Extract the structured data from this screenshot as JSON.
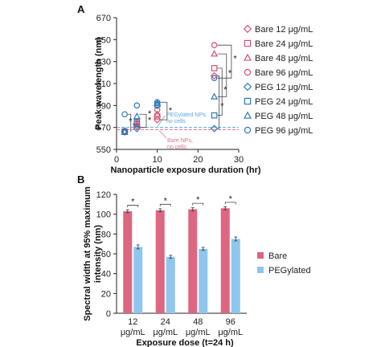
{
  "chart_data": [
    {
      "panel": "A",
      "type": "scatter",
      "xlabel": "Nanoparticle exposure duration (hr)",
      "ylabel": "Peak wavelength (nm)",
      "xlim": [
        0,
        30
      ],
      "ylim": [
        550,
        670
      ],
      "xticks": [
        "0",
        "10",
        "20",
        "30"
      ],
      "yticks": [
        "550",
        "570",
        "590",
        "610",
        "630",
        "650",
        "670"
      ],
      "grid": false,
      "legend_position": "right",
      "series": [
        {
          "name": "Bare 12 μg/mL",
          "marker": "diamond",
          "color": "#d94f6c",
          "points": [
            [
              2,
              566
            ],
            [
              5,
              571
            ],
            [
              10,
              577
            ],
            [
              24,
              617
            ]
          ]
        },
        {
          "name": "Bare 24 μg/mL",
          "marker": "square",
          "color": "#d94f6c",
          "points": [
            [
              2,
              566
            ],
            [
              5,
              573
            ],
            [
              10,
              580
            ],
            [
              24,
              624
            ]
          ]
        },
        {
          "name": "Bare 48 μg/mL",
          "marker": "triangle",
          "color": "#d94f6c",
          "points": [
            [
              2,
              566
            ],
            [
              5,
              573
            ],
            [
              10,
              582
            ],
            [
              24,
              637
            ]
          ]
        },
        {
          "name": "Bare 96 μg/mL",
          "marker": "circle",
          "color": "#d94f6c",
          "points": [
            [
              2,
              567
            ],
            [
              5,
              574
            ],
            [
              10,
              586
            ],
            [
              24,
              645
            ]
          ]
        },
        {
          "name": "PEG 12 μg/mL",
          "marker": "diamond",
          "color": "#2f78b8",
          "points": [
            [
              2,
              566
            ],
            [
              5,
              569
            ],
            [
              10,
              590
            ],
            [
              24,
              569
            ]
          ]
        },
        {
          "name": "PEG 24 μg/mL",
          "marker": "square",
          "color": "#2f78b8",
          "points": [
            [
              2,
              566
            ],
            [
              5,
              575
            ],
            [
              10,
              591
            ],
            [
              24,
              581
            ]
          ]
        },
        {
          "name": "PEG 48 μg/mL",
          "marker": "triangle",
          "color": "#2f78b8",
          "points": [
            [
              2,
              566
            ],
            [
              5,
              580
            ],
            [
              10,
              592
            ],
            [
              24,
              598
            ]
          ]
        },
        {
          "name": "PEG 96 μg/mL",
          "marker": "circle",
          "color": "#2f78b8",
          "points": [
            [
              2,
              582
            ],
            [
              5,
              590
            ],
            [
              10,
              593
            ],
            [
              24,
              615
            ]
          ]
        }
      ],
      "reference_lines": [
        {
          "label": "PEGylated NPs,\nno cells",
          "y": 570,
          "color": "#59a8e0"
        },
        {
          "label": "Bare NPs,\nno cells",
          "y": 568,
          "color": "#e0708a"
        }
      ],
      "significance_label": "*"
    },
    {
      "panel": "B",
      "type": "bar",
      "xlabel": "Exposure dose (t=24 h)",
      "ylabel": "Spectral width at 95% maximum intensity (nm)",
      "categories": [
        "12 μg/mL",
        "24 μg/mL",
        "48 μg/mL",
        "96 μg/mL"
      ],
      "ylim": [
        0,
        120
      ],
      "yticks": [
        "0",
        "20",
        "40",
        "60",
        "80",
        "100",
        "120"
      ],
      "legend_position": "right",
      "series": [
        {
          "name": "Bare",
          "color": "#dd6680",
          "values": [
            103,
            104,
            105,
            106
          ],
          "errors": [
            1.5,
            1.5,
            1.5,
            1.5
          ]
        },
        {
          "name": "PEGylated",
          "color": "#8ec6ee",
          "values": [
            67,
            57,
            65,
            75
          ],
          "errors": [
            2,
            1.5,
            1.5,
            2
          ]
        }
      ],
      "significance_label": "*"
    }
  ]
}
